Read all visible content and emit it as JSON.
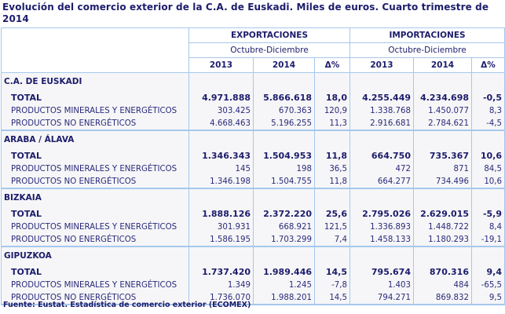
{
  "title": "Evolución del comercio exterior de la C.A. de Euskadi. Miles de euros. Cuarto trimestre de 2014",
  "header": {
    "groups": [
      "EXPORTACIONES",
      "IMPORTACIONES"
    ],
    "period": "Octubre-Diciembre",
    "columns": [
      "2013",
      "2014",
      "Δ%"
    ]
  },
  "sections": [
    {
      "region": "C.A. DE EUSKADI",
      "rows": [
        {
          "label": "TOTAL",
          "values": [
            "4.971.888",
            "5.866.618",
            "18,0",
            "4.255.449",
            "4.234.698",
            "-0,5"
          ]
        },
        {
          "label": "PRODUCTOS MINERALES Y ENERGÉTICOS",
          "values": [
            "303.425",
            "670.363",
            "120,9",
            "1.338.768",
            "1.450.077",
            "8,3"
          ]
        },
        {
          "label": "PRODUCTOS NO ENERGÉTICOS",
          "values": [
            "4.668.463",
            "5.196.255",
            "11,3",
            "2.916.681",
            "2.784.621",
            "-4,5"
          ]
        }
      ]
    },
    {
      "region": "ARABA / ÁLAVA",
      "rows": [
        {
          "label": "TOTAL",
          "values": [
            "1.346.343",
            "1.504.953",
            "11,8",
            "664.750",
            "735.367",
            "10,6"
          ]
        },
        {
          "label": "PRODUCTOS MINERALES Y ENERGÉTICOS",
          "values": [
            "145",
            "198",
            "36,5",
            "472",
            "871",
            "84,5"
          ]
        },
        {
          "label": "PRODUCTOS NO ENERGÉTICOS",
          "values": [
            "1.346.198",
            "1.504.755",
            "11,8",
            "664.277",
            "734.496",
            "10,6"
          ]
        }
      ]
    },
    {
      "region": "BIZKAIA",
      "rows": [
        {
          "label": "TOTAL",
          "values": [
            "1.888.126",
            "2.372.220",
            "25,6",
            "2.795.026",
            "2.629.015",
            "-5,9"
          ]
        },
        {
          "label": "PRODUCTOS MINERALES Y ENERGÉTICOS",
          "values": [
            "301.931",
            "668.921",
            "121,5",
            "1.336.893",
            "1.448.722",
            "8,4"
          ]
        },
        {
          "label": "PRODUCTOS NO ENERGÉTICOS",
          "values": [
            "1.586.195",
            "1.703.299",
            "7,4",
            "1.458.133",
            "1.180.293",
            "-19,1"
          ]
        }
      ]
    },
    {
      "region": "GIPUZKOA",
      "rows": [
        {
          "label": "TOTAL",
          "values": [
            "1.737.420",
            "1.989.446",
            "14,5",
            "795.674",
            "870.316",
            "9,4"
          ]
        },
        {
          "label": "PRODUCTOS MINERALES Y ENERGÉTICOS",
          "values": [
            "1.349",
            "1.245",
            "-7,8",
            "1.403",
            "484",
            "-65,5"
          ]
        },
        {
          "label": "PRODUCTOS NO ENERGÉTICOS",
          "values": [
            "1.736.070",
            "1.988.201",
            "14,5",
            "794.271",
            "869.832",
            "9,5"
          ]
        }
      ]
    }
  ],
  "footer": "Fuente: Eustat. Estadística de comercio exterior (ECOMEX)",
  "colors": {
    "text": "#1c1c6b",
    "border": "#a6c8ec",
    "row_bg": "#f6f6f8"
  }
}
